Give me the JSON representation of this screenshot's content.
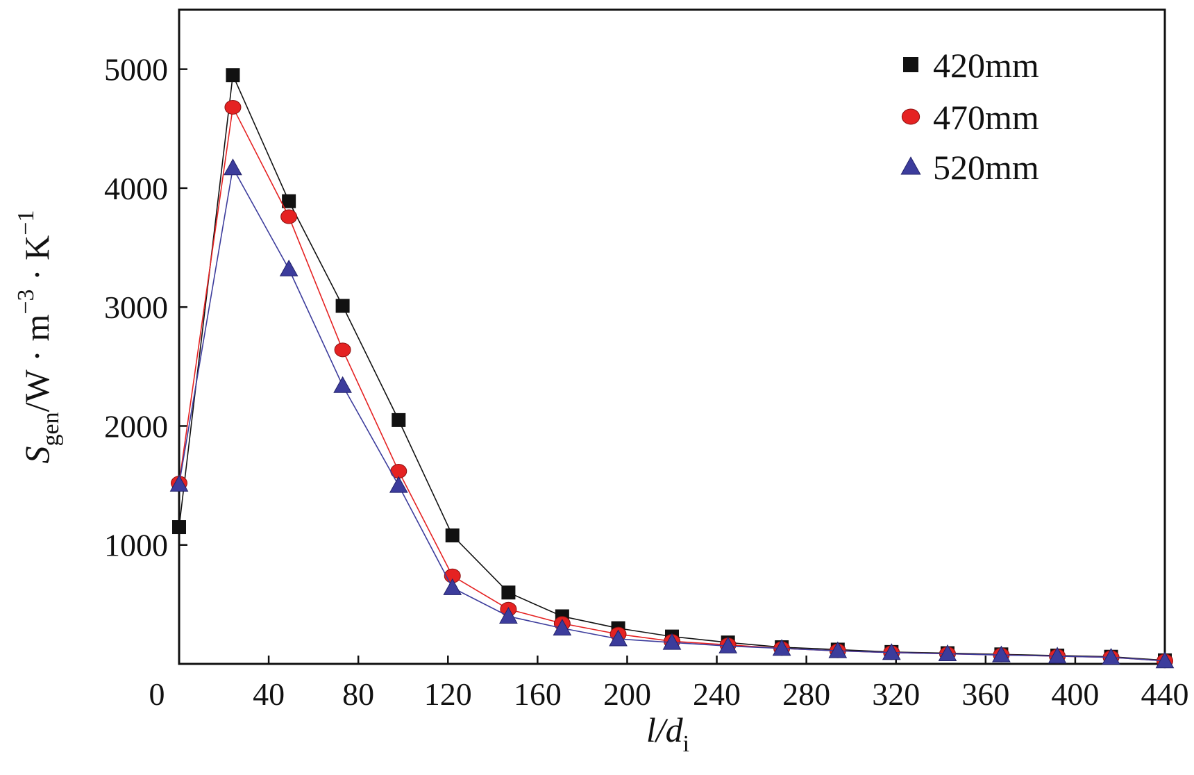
{
  "chart_data": {
    "type": "line",
    "title": "",
    "xlabel_parts": {
      "main": "l/d",
      "sub": "i"
    },
    "ylabel_parts": {
      "s": "S",
      "sub": "gen",
      "unit_a": "/W · m",
      "sup1": "−3",
      "unit_b": " · K",
      "sup2": "−1"
    },
    "xlim": [
      0,
      440
    ],
    "ylim": [
      0,
      5500
    ],
    "x_ticks": [
      0,
      40,
      80,
      120,
      160,
      200,
      240,
      280,
      320,
      360,
      400,
      440
    ],
    "x_tick_labels": [
      "0",
      "40",
      "80",
      "120",
      "160",
      "200",
      "240",
      "280",
      "320",
      "360",
      "400",
      "440"
    ],
    "y_ticks": [
      1000,
      2000,
      3000,
      4000,
      5000
    ],
    "y_tick_labels": [
      "1000",
      "2000",
      "3000",
      "4000",
      "5000"
    ],
    "legend_position": "top-right",
    "x": [
      0,
      24,
      49,
      73,
      98,
      122,
      147,
      171,
      196,
      220,
      245,
      269,
      294,
      318,
      343,
      367,
      392,
      416,
      440
    ],
    "series": [
      {
        "name": "420mm",
        "color": "#111111",
        "marker": "square",
        "values": [
          1150,
          4950,
          3890,
          3010,
          2050,
          1080,
          600,
          400,
          300,
          230,
          180,
          140,
          120,
          100,
          90,
          80,
          70,
          60,
          30
        ]
      },
      {
        "name": "470mm",
        "color": "#e52222",
        "marker": "circle",
        "values": [
          1520,
          4680,
          3760,
          2640,
          1620,
          740,
          460,
          340,
          250,
          190,
          160,
          130,
          110,
          95,
          85,
          75,
          65,
          55,
          25
        ]
      },
      {
        "name": "520mm",
        "color": "#3c3c9c",
        "marker": "triangle",
        "values": [
          1510,
          4170,
          3320,
          2340,
          1500,
          640,
          400,
          300,
          210,
          180,
          150,
          130,
          110,
          95,
          85,
          75,
          65,
          55,
          25
        ]
      }
    ]
  }
}
